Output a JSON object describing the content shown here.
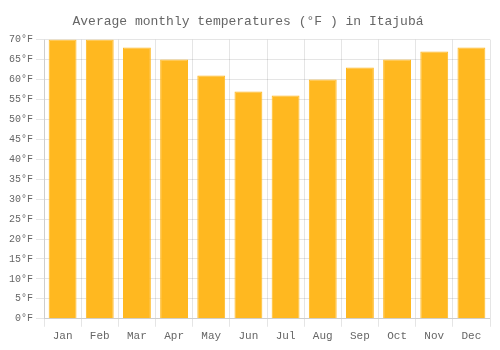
{
  "chart_data": {
    "type": "bar",
    "title": "Average monthly temperatures (°F ) in Itajubá",
    "categories": [
      "Jan",
      "Feb",
      "Mar",
      "Apr",
      "May",
      "Jun",
      "Jul",
      "Aug",
      "Sep",
      "Oct",
      "Nov",
      "Dec"
    ],
    "values": [
      70,
      70,
      68,
      65,
      61,
      57,
      56,
      60,
      63,
      65,
      67,
      68
    ],
    "color": "#FFB820",
    "ylim": [
      0,
      70
    ],
    "yticks": [
      {
        "value": 0,
        "label": "0°F"
      },
      {
        "value": 5,
        "label": "5°F"
      },
      {
        "value": 10,
        "label": "10°F"
      },
      {
        "value": 15,
        "label": "15°F"
      },
      {
        "value": 20,
        "label": "20°F"
      },
      {
        "value": 25,
        "label": "25°F"
      },
      {
        "value": 30,
        "label": "30°F"
      },
      {
        "value": 35,
        "label": "35°F"
      },
      {
        "value": 40,
        "label": "40°F"
      },
      {
        "value": 45,
        "label": "45°F"
      },
      {
        "value": 50,
        "label": "50°F"
      },
      {
        "value": 55,
        "label": "55°F"
      },
      {
        "value": 60,
        "label": "60°F"
      },
      {
        "value": 65,
        "label": "65°F"
      },
      {
        "value": 70,
        "label": "70°F"
      }
    ],
    "grid": true
  }
}
